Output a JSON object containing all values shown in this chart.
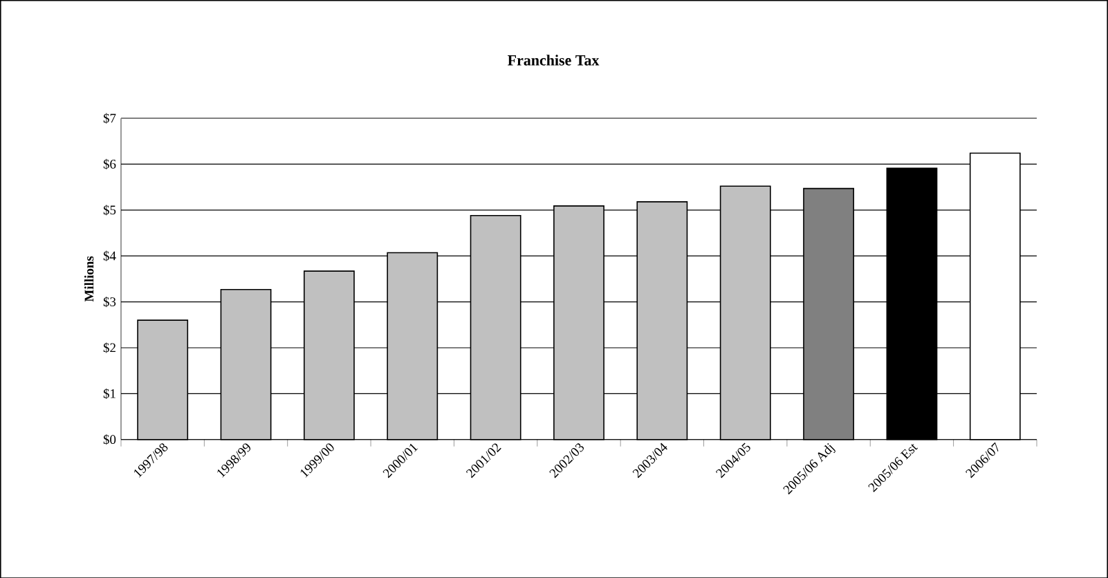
{
  "chart_data": {
    "type": "bar",
    "title": "Franchise Tax",
    "ylabel": "Millions",
    "categories": [
      "1997/98",
      "1998/99",
      "1999/00",
      "2000/01",
      "2001/02",
      "2002/03",
      "2003/04",
      "2004/05",
      "2005/06 Adj",
      "2005/06 Est",
      "2006/07"
    ],
    "values": [
      2.6,
      3.27,
      3.67,
      4.07,
      4.88,
      5.09,
      5.18,
      5.52,
      5.47,
      5.91,
      6.24
    ],
    "colors": [
      "#c0c0c0",
      "#c0c0c0",
      "#c0c0c0",
      "#c0c0c0",
      "#c0c0c0",
      "#c0c0c0",
      "#c0c0c0",
      "#c0c0c0",
      "#808080",
      "#000000",
      "#ffffff"
    ],
    "ylim": [
      0,
      7
    ],
    "yticks": [
      {
        "value": 0,
        "label": "$0"
      },
      {
        "value": 1,
        "label": "$1"
      },
      {
        "value": 2,
        "label": "$2"
      },
      {
        "value": 3,
        "label": "$3"
      },
      {
        "value": 4,
        "label": "$4"
      },
      {
        "value": 5,
        "label": "$5"
      },
      {
        "value": 6,
        "label": "$6"
      },
      {
        "value": 7,
        "label": "$7"
      }
    ],
    "grid": "y"
  }
}
